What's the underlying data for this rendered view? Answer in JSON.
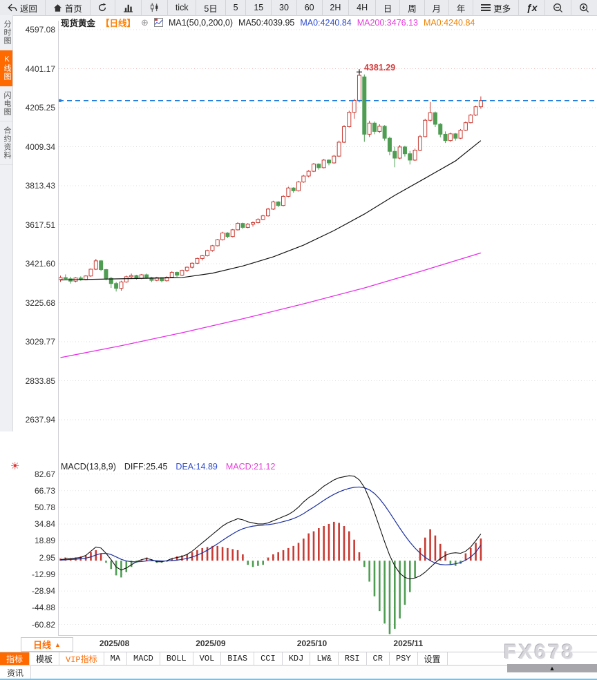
{
  "toolbar": {
    "items": [
      {
        "name": "back",
        "icon": "back",
        "label": "返回"
      },
      {
        "name": "home",
        "icon": "home",
        "label": "首页"
      },
      {
        "name": "refresh",
        "icon": "refresh",
        "label": ""
      },
      {
        "name": "bar-chart-view",
        "icon": "bar-chart",
        "label": ""
      },
      {
        "name": "kline-view",
        "icon": "kline",
        "label": ""
      },
      {
        "name": "tick",
        "icon": "",
        "label": "tick"
      },
      {
        "name": "5day",
        "icon": "",
        "label": "5日"
      },
      {
        "name": "5min",
        "icon": "",
        "label": "5"
      },
      {
        "name": "15min",
        "icon": "",
        "label": "15"
      },
      {
        "name": "30min",
        "icon": "",
        "label": "30"
      },
      {
        "name": "60min",
        "icon": "",
        "label": "60"
      },
      {
        "name": "2hour",
        "icon": "",
        "label": "2H"
      },
      {
        "name": "4hour",
        "icon": "",
        "label": "4H"
      },
      {
        "name": "daily",
        "icon": "",
        "label": "日"
      },
      {
        "name": "weekly",
        "icon": "",
        "label": "周"
      },
      {
        "name": "monthly",
        "icon": "",
        "label": "月"
      },
      {
        "name": "yearly",
        "icon": "",
        "label": "年"
      },
      {
        "name": "more",
        "icon": "menu",
        "label": "更多"
      },
      {
        "name": "formula",
        "icon": "fx",
        "label": ""
      },
      {
        "name": "zoom-out",
        "icon": "zoom-out",
        "label": ""
      },
      {
        "name": "zoom-in",
        "icon": "zoom-in",
        "label": ""
      }
    ]
  },
  "side_tabs": [
    {
      "label": "分时图",
      "active": false
    },
    {
      "label": "K线图",
      "active": true
    },
    {
      "label": "闪电图",
      "active": false
    },
    {
      "label": "合约资料",
      "active": false
    }
  ],
  "chart_header": {
    "symbol": "现货黄金",
    "period_tag": "【日线】",
    "circle_icon": "⊕",
    "ma_settings": "MA1(50,0,200,0)",
    "ma50": "MA50:4039.95",
    "ma0_blue": "MA0:4240.84",
    "ma200": "MA200:3476.13",
    "ma0_orange": "MA0:4240.84"
  },
  "macd_header": {
    "title": "MACD(13,8,9)",
    "diff": "DIFF:25.45",
    "dea": "DEA:14.89",
    "macd": "MACD:21.12"
  },
  "period_selector": {
    "label": "日线",
    "arrow": "▲"
  },
  "bottom_tabs": [
    {
      "label": "指标",
      "active": true
    },
    {
      "label": "模板"
    },
    {
      "label": "VIP指标",
      "vip": true
    },
    {
      "label": "MA"
    },
    {
      "label": "MACD"
    },
    {
      "label": "BOLL"
    },
    {
      "label": "VOL"
    },
    {
      "label": "BIAS"
    },
    {
      "label": "CCI"
    },
    {
      "label": "KDJ"
    },
    {
      "label": "LW&"
    },
    {
      "label": "RSI"
    },
    {
      "label": "CR"
    },
    {
      "label": "PSY"
    },
    {
      "label": "设置"
    }
  ],
  "status_bar": {
    "news_tab": "资讯"
  },
  "watermark": "FX678",
  "collapse_triangle": "▲",
  "colors": {
    "accent": "#ff6a00",
    "candle_up": "#c93a32",
    "candle_down": "#4e9d52",
    "ma50": "#111111",
    "ma200": "#e82ee8",
    "diff_line": "#111111",
    "dea_line": "#1a2f9e",
    "price_line": "#1b7ce0",
    "grid": "#dcdcdc",
    "grid_pink": "#eeb9b9",
    "annotation": "#d23c3c"
  },
  "chart_data": [
    {
      "type": "candlestick",
      "title": "现货黄金 日线",
      "y_axis_labels": [
        4597.08,
        4401.17,
        4205.25,
        4009.34,
        3813.43,
        3617.51,
        3421.6,
        3225.68,
        3029.77,
        2833.85,
        2637.94
      ],
      "x_ticks": [
        {
          "label": "2025/08",
          "index": 11
        },
        {
          "label": "2025/09",
          "index": 30
        },
        {
          "label": "2025/10",
          "index": 50
        },
        {
          "label": "2025/11",
          "index": 69
        }
      ],
      "last_price": 4240.84,
      "high_annotation": {
        "text": "4381.29",
        "price": 4381.29,
        "candle_index": 59
      },
      "candles": [
        [
          3342,
          3362,
          3330,
          3352
        ],
        [
          3352,
          3368,
          3344,
          3346
        ],
        [
          3346,
          3356,
          3322,
          3334
        ],
        [
          3334,
          3354,
          3328,
          3350
        ],
        [
          3350,
          3358,
          3336,
          3341
        ],
        [
          3341,
          3364,
          3338,
          3360
        ],
        [
          3360,
          3398,
          3356,
          3394
        ],
        [
          3394,
          3446,
          3390,
          3436
        ],
        [
          3436,
          3440,
          3384,
          3392
        ],
        [
          3392,
          3396,
          3338,
          3348
        ],
        [
          3348,
          3356,
          3300,
          3322
        ],
        [
          3322,
          3330,
          3282,
          3298
        ],
        [
          3298,
          3336,
          3286,
          3330
        ],
        [
          3330,
          3362,
          3326,
          3356
        ],
        [
          3356,
          3372,
          3348,
          3362
        ],
        [
          3362,
          3366,
          3342,
          3348
        ],
        [
          3348,
          3370,
          3344,
          3366
        ],
        [
          3366,
          3372,
          3346,
          3352
        ],
        [
          3352,
          3356,
          3330,
          3338
        ],
        [
          3338,
          3356,
          3334,
          3352
        ],
        [
          3352,
          3354,
          3328,
          3336
        ],
        [
          3336,
          3358,
          3332,
          3354
        ],
        [
          3354,
          3384,
          3350,
          3378
        ],
        [
          3378,
          3382,
          3356,
          3364
        ],
        [
          3364,
          3392,
          3360,
          3388
        ],
        [
          3388,
          3408,
          3380,
          3404
        ],
        [
          3404,
          3428,
          3398,
          3424
        ],
        [
          3424,
          3452,
          3420,
          3448
        ],
        [
          3448,
          3466,
          3438,
          3462
        ],
        [
          3462,
          3492,
          3458,
          3488
        ],
        [
          3488,
          3516,
          3482,
          3512
        ],
        [
          3512,
          3546,
          3508,
          3542
        ],
        [
          3542,
          3582,
          3538,
          3576
        ],
        [
          3576,
          3580,
          3550,
          3558
        ],
        [
          3558,
          3596,
          3554,
          3592
        ],
        [
          3592,
          3630,
          3588,
          3624
        ],
        [
          3624,
          3628,
          3596,
          3604
        ],
        [
          3604,
          3626,
          3600,
          3620
        ],
        [
          3620,
          3634,
          3608,
          3628
        ],
        [
          3628,
          3650,
          3624,
          3644
        ],
        [
          3644,
          3668,
          3640,
          3662
        ],
        [
          3662,
          3702,
          3658,
          3696
        ],
        [
          3696,
          3738,
          3692,
          3732
        ],
        [
          3732,
          3736,
          3706,
          3714
        ],
        [
          3714,
          3766,
          3710,
          3760
        ],
        [
          3760,
          3808,
          3756,
          3802
        ],
        [
          3802,
          3806,
          3778,
          3788
        ],
        [
          3788,
          3838,
          3784,
          3832
        ],
        [
          3832,
          3868,
          3828,
          3862
        ],
        [
          3862,
          3892,
          3856,
          3886
        ],
        [
          3886,
          3928,
          3882,
          3922
        ],
        [
          3922,
          3926,
          3894,
          3904
        ],
        [
          3904,
          3948,
          3900,
          3942
        ],
        [
          3942,
          3946,
          3916,
          3928
        ],
        [
          3928,
          3968,
          3924,
          3962
        ],
        [
          3962,
          4040,
          3958,
          4032
        ],
        [
          4032,
          4118,
          4028,
          4110
        ],
        [
          4110,
          4190,
          4106,
          4182
        ],
        [
          4182,
          4250,
          4150,
          4242
        ],
        [
          4242,
          4381.29,
          4232,
          4368
        ],
        [
          4360,
          4372,
          4034,
          4072
        ],
        [
          4072,
          4140,
          4058,
          4128
        ],
        [
          4128,
          4136,
          4072,
          4086
        ],
        [
          4086,
          4122,
          4078,
          4112
        ],
        [
          4112,
          4118,
          4040,
          4052
        ],
        [
          4052,
          4060,
          3966,
          3986
        ],
        [
          3986,
          4010,
          3906,
          3952
        ],
        [
          3952,
          4018,
          3946,
          4008
        ],
        [
          4008,
          4014,
          3960,
          3974
        ],
        [
          3974,
          3988,
          3920,
          3942
        ],
        [
          3942,
          4000,
          3938,
          3992
        ],
        [
          3992,
          4068,
          3988,
          4060
        ],
        [
          4060,
          4150,
          4056,
          4142
        ],
        [
          4142,
          4234,
          4136,
          4180
        ],
        [
          4180,
          4186,
          4108,
          4122
        ],
        [
          4122,
          4128,
          4056,
          4072
        ],
        [
          4072,
          4086,
          4028,
          4040
        ],
        [
          4040,
          4080,
          4034,
          4074
        ],
        [
          4074,
          4078,
          4040,
          4052
        ],
        [
          4052,
          4098,
          4048,
          4092
        ],
        [
          4092,
          4136,
          4088,
          4130
        ],
        [
          4130,
          4174,
          4126,
          4168
        ],
        [
          4168,
          4216,
          4164,
          4210
        ],
        [
          4210,
          4262,
          4200,
          4240.84
        ]
      ],
      "ma50": [
        [
          0,
          3340
        ],
        [
          8,
          3344
        ],
        [
          16,
          3348
        ],
        [
          24,
          3352
        ],
        [
          30,
          3374
        ],
        [
          36,
          3410
        ],
        [
          42,
          3456
        ],
        [
          48,
          3515
        ],
        [
          54,
          3588
        ],
        [
          60,
          3671
        ],
        [
          66,
          3765
        ],
        [
          72,
          3851
        ],
        [
          78,
          3938
        ],
        [
          83,
          4040
        ]
      ],
      "ma200": [
        [
          0,
          2950
        ],
        [
          12,
          3010
        ],
        [
          24,
          3075
        ],
        [
          36,
          3145
        ],
        [
          48,
          3220
        ],
        [
          60,
          3300
        ],
        [
          72,
          3390
        ],
        [
          83,
          3476
        ]
      ]
    },
    {
      "type": "macd",
      "params": "(13,8,9)",
      "y_axis_labels": [
        82.67,
        66.73,
        50.78,
        34.84,
        18.89,
        2.95,
        -12.99,
        -28.94,
        -44.88,
        -60.82
      ],
      "diff": [
        1,
        1.5,
        2,
        2.5,
        3,
        5,
        9,
        13,
        12,
        7,
        1,
        -6,
        -9,
        -7,
        -4,
        -1,
        1,
        2,
        1,
        -1,
        -1,
        0,
        2,
        3,
        4,
        6,
        9,
        13,
        17,
        21,
        25,
        29,
        33,
        36,
        38,
        40,
        39,
        37,
        36,
        35,
        35,
        36,
        38,
        40,
        42,
        44,
        47,
        51,
        56,
        60,
        63,
        67,
        71,
        74,
        77,
        79,
        80,
        81,
        80.5,
        77,
        70,
        59,
        46,
        32,
        18,
        5,
        -5,
        -12,
        -16,
        -17.5,
        -16.5,
        -14.5,
        -11,
        -6.5,
        -2,
        2,
        5,
        7,
        7.5,
        7,
        9,
        13,
        19,
        25.45
      ],
      "dea": [
        0.5,
        0.8,
        1.1,
        1.4,
        1.8,
        2.4,
        3.6,
        5.4,
        6.8,
        7,
        5.8,
        3.6,
        1.3,
        -0.3,
        -1,
        -1.1,
        -0.8,
        -0.3,
        0,
        -0.1,
        -0.3,
        -0.3,
        0,
        0.5,
        1.2,
        2.1,
        3.4,
        5.2,
        7.4,
        10,
        12.9,
        16,
        19.3,
        22.5,
        25.5,
        28.3,
        30.4,
        31.9,
        32.9,
        33.5,
        33.9,
        34.3,
        35,
        36,
        37.2,
        38.5,
        40.1,
        42.2,
        44.8,
        48,
        51,
        54.2,
        57.5,
        60.5,
        63.2,
        65.5,
        67.4,
        68.9,
        69.9,
        70.2,
        69.5,
        67.5,
        64,
        59,
        52.8,
        45.8,
        38.4,
        31,
        24,
        17.6,
        12,
        7.2,
        3.2,
        0,
        -2.3,
        -3.6,
        -4,
        -3.8,
        -3,
        -1.8,
        0.5,
        3.5,
        8,
        14.89
      ],
      "histogram": [
        2,
        3,
        2,
        3,
        4,
        5,
        8,
        10,
        7,
        -2,
        -8,
        -14,
        -16,
        -11,
        -6,
        -2,
        1,
        3,
        1,
        -2,
        -2,
        -1,
        2,
        4,
        5,
        6,
        8,
        10,
        12,
        13,
        14,
        14,
        13,
        12,
        11,
        10,
        6,
        -4,
        -6,
        -5,
        -4,
        3,
        6,
        8,
        10,
        12,
        14,
        17,
        21,
        26,
        28,
        31,
        33,
        35,
        37,
        36,
        33,
        28,
        20,
        8,
        -6,
        -20,
        -34,
        -48,
        -60,
        -70,
        -65,
        -55,
        -42,
        -30,
        -16,
        12,
        22,
        30,
        24,
        16,
        9,
        -4,
        -5,
        -3,
        7,
        12,
        17,
        21.12
      ]
    }
  ]
}
